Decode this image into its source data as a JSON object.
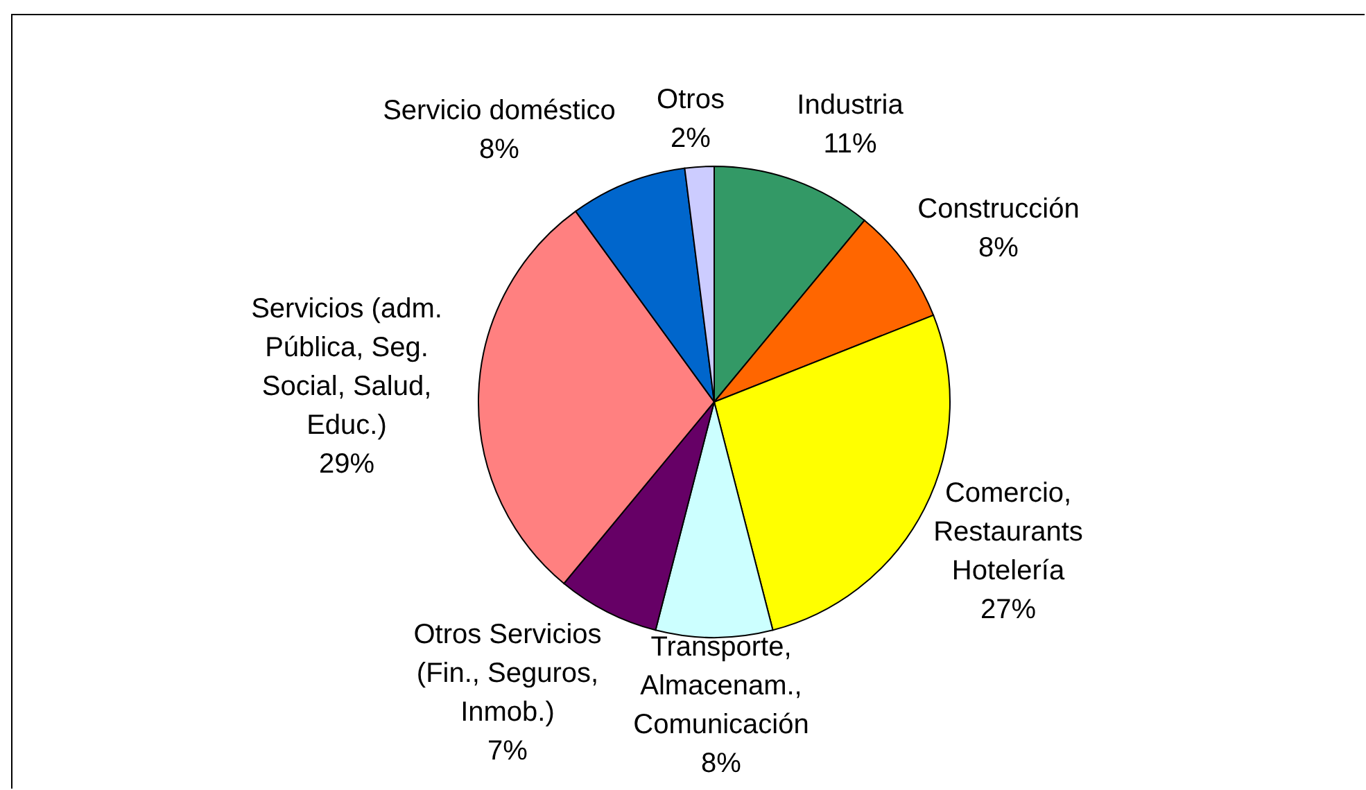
{
  "chart_data": {
    "type": "pie",
    "categories": [
      "Industria",
      "Construcción",
      "Comercio,\nRestaurants\nHotelería",
      "Transporte,\nAlmacenam.,\nComunicación",
      "Otros Servicios\n(Fin., Seguros,\nInmob.)",
      "Servicios (adm.\nPública, Seg.\nSocial, Salud,\nEduc.)",
      "Servicio doméstico",
      "Otros"
    ],
    "values": [
      11,
      8,
      27,
      8,
      7,
      29,
      8,
      2
    ],
    "value_labels": [
      "11%",
      "8%",
      "27%",
      "8%",
      "7%",
      "29%",
      "8%",
      "2%"
    ],
    "colors": [
      "#339966",
      "#ff6600",
      "#ffff00",
      "#ccffff",
      "#660066",
      "#ff8080",
      "#0066cc",
      "#ccccff"
    ]
  }
}
